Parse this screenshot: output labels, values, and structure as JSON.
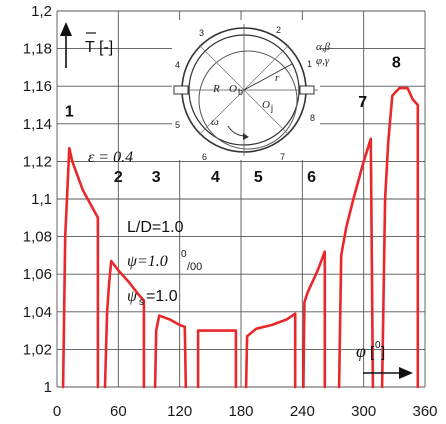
{
  "chart_data": {
    "type": "line",
    "title": "",
    "xlabel": "φ [0]",
    "ylabel": "T [-]",
    "xlim": [
      0,
      360
    ],
    "ylim": [
      1.0,
      1.2
    ],
    "x_ticks": [
      0,
      60,
      120,
      180,
      240,
      300,
      360
    ],
    "y_ticks": [
      1.0,
      1.02,
      1.04,
      1.06,
      1.08,
      1.1,
      1.12,
      1.14,
      1.16,
      1.18,
      1.2
    ],
    "x_tick_labels": [
      "0",
      "60",
      "120",
      "180",
      "240",
      "300",
      "360"
    ],
    "y_tick_labels": [
      "1",
      "1,02",
      "1,04",
      "1,06",
      "1,08",
      "1,1",
      "1,12",
      "1,14",
      "1,16",
      "1,18",
      "1,2"
    ],
    "grid": true,
    "series_color": "#e8282b",
    "segments": [
      {
        "label": "1",
        "points": [
          [
            6,
            1.0
          ],
          [
            8,
            1.08
          ],
          [
            12,
            1.127
          ],
          [
            15,
            1.12
          ],
          [
            25,
            1.105
          ],
          [
            35,
            1.095
          ],
          [
            40,
            1.09
          ],
          [
            40,
            1.0
          ]
        ]
      },
      {
        "label": "2",
        "points": [
          [
            47,
            1.0
          ],
          [
            49,
            1.04
          ],
          [
            51,
            1.055
          ],
          [
            53,
            1.067
          ],
          [
            60,
            1.062
          ],
          [
            70,
            1.056
          ],
          [
            80,
            1.049
          ],
          [
            85,
            1.046
          ],
          [
            85,
            1.0
          ]
        ]
      },
      {
        "label": "3",
        "points": [
          [
            96,
            1.0
          ],
          [
            97,
            1.03
          ],
          [
            100,
            1.038
          ],
          [
            110,
            1.036
          ],
          [
            120,
            1.033
          ],
          [
            125,
            1.032
          ],
          [
            126,
            1.0
          ]
        ]
      },
      {
        "label": "4",
        "points": [
          [
            138,
            1.0
          ],
          [
            138,
            1.03
          ],
          [
            160,
            1.03
          ],
          [
            175,
            1.03
          ],
          [
            175,
            1.0
          ]
        ]
      },
      {
        "label": "5",
        "points": [
          [
            185,
            1.0
          ],
          [
            186,
            1.027
          ],
          [
            195,
            1.031
          ],
          [
            210,
            1.033
          ],
          [
            225,
            1.036
          ],
          [
            233,
            1.039
          ],
          [
            233,
            1.0
          ]
        ]
      },
      {
        "label": "6",
        "points": [
          [
            241,
            1.0
          ],
          [
            242,
            1.045
          ],
          [
            245,
            1.05
          ],
          [
            255,
            1.062
          ],
          [
            262,
            1.072
          ],
          [
            262,
            1.0
          ]
        ]
      },
      {
        "label": "7",
        "points": [
          [
            276,
            1.0
          ],
          [
            278,
            1.07
          ],
          [
            283,
            1.085
          ],
          [
            290,
            1.1
          ],
          [
            300,
            1.12
          ],
          [
            307,
            1.132
          ],
          [
            309,
            1.0
          ]
        ]
      },
      {
        "label": "8",
        "points": [
          [
            318,
            1.0
          ],
          [
            321,
            1.1
          ],
          [
            324,
            1.13
          ],
          [
            328,
            1.155
          ],
          [
            335,
            1.159
          ],
          [
            343,
            1.159
          ],
          [
            348,
            1.153
          ],
          [
            353,
            1.15
          ],
          [
            353,
            1.0
          ]
        ]
      }
    ],
    "annotations": {
      "epsilon": "ε = 0.4",
      "ld": "L/D=1.0",
      "psi_prefix": "ψ=1.0",
      "psi_sup": "0",
      "psi_sub": "/00",
      "psis_prefix": "ψ",
      "psis_sub": "s",
      "psis_value": "=1.0",
      "phi_label": "φ",
      "phi_unit_open": "[",
      "phi_unit_sup": "0",
      "phi_unit_close": "]",
      "t_label": "T",
      "t_unit": "[-]"
    },
    "segment_labels": [
      {
        "text": "1",
        "x": 12,
        "y": 1.144
      },
      {
        "text": "2",
        "x": 60,
        "y": 1.109
      },
      {
        "text": "3",
        "x": 97,
        "y": 1.109
      },
      {
        "text": "4",
        "x": 155,
        "y": 1.109
      },
      {
        "text": "5",
        "x": 197,
        "y": 1.109
      },
      {
        "text": "6",
        "x": 249,
        "y": 1.109
      },
      {
        "text": "7",
        "x": 299,
        "y": 1.149
      },
      {
        "text": "8",
        "x": 332,
        "y": 1.17
      }
    ],
    "bearing_labels": {
      "n1": "1",
      "n2": "2",
      "n3": "3",
      "n4": "4",
      "n5": "5",
      "n6": "6",
      "n7": "7",
      "n8": "8",
      "alpha_beta": "α,β",
      "phi_gamma": "φ,γ",
      "r_big": "R",
      "o_b": "O",
      "o_b_sub": "b",
      "r_small": "r",
      "o_j": "O",
      "o_j_sub": "j",
      "omega": "ω"
    }
  }
}
